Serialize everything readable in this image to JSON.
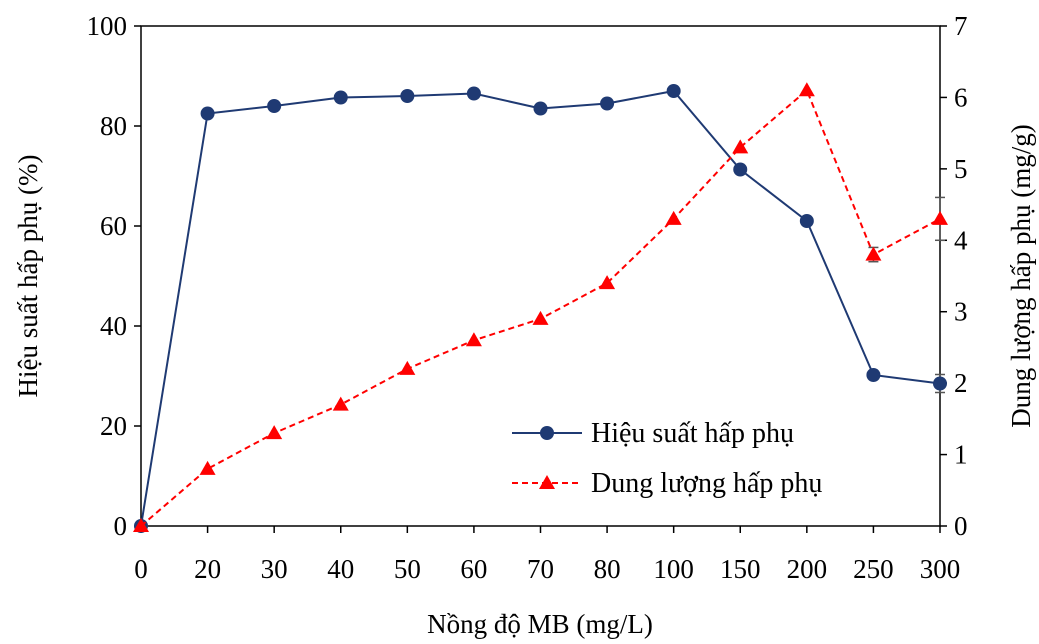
{
  "chart_data": {
    "type": "line",
    "categories": [
      "0",
      "20",
      "30",
      "40",
      "50",
      "60",
      "70",
      "80",
      "100",
      "150",
      "200",
      "250",
      "300"
    ],
    "xlabel": "Nồng độ MB (mg/L)",
    "ylabel_left": "Hiệu suất hấp phụ (%)",
    "ylabel_right": "Dung lượng hấp phụ (mg/g)",
    "ylim_left": [
      0,
      100
    ],
    "yticks_left": [
      0,
      20,
      40,
      60,
      80,
      100
    ],
    "ylim_right": [
      0,
      7
    ],
    "yticks_right": [
      0,
      1,
      2,
      3,
      4,
      5,
      6,
      7
    ],
    "grid": false,
    "legend_position": "bottom-right",
    "series": [
      {
        "name": "Hiệu suất hấp phụ",
        "axis": "left",
        "color": "#1F3A73",
        "marker": "circle",
        "line": "solid",
        "values": [
          0,
          82.5,
          84,
          85.7,
          86,
          86.5,
          83.5,
          84.5,
          87,
          71.3,
          61,
          30.2,
          28.5
        ],
        "errors": [
          0,
          0,
          0,
          0,
          0,
          0,
          0,
          0,
          0,
          0,
          0,
          0,
          1.8
        ]
      },
      {
        "name": "Dung lượng hấp phụ",
        "axis": "right",
        "color": "#FF0000",
        "marker": "triangle",
        "line": "dashed",
        "values": [
          0,
          0.8,
          1.3,
          1.7,
          2.2,
          2.6,
          2.9,
          3.4,
          4.3,
          5.3,
          6.1,
          3.8,
          4.3
        ],
        "errors": [
          0,
          0,
          0,
          0,
          0,
          0,
          0,
          0,
          0,
          0,
          0,
          0.1,
          0.3
        ]
      }
    ]
  }
}
